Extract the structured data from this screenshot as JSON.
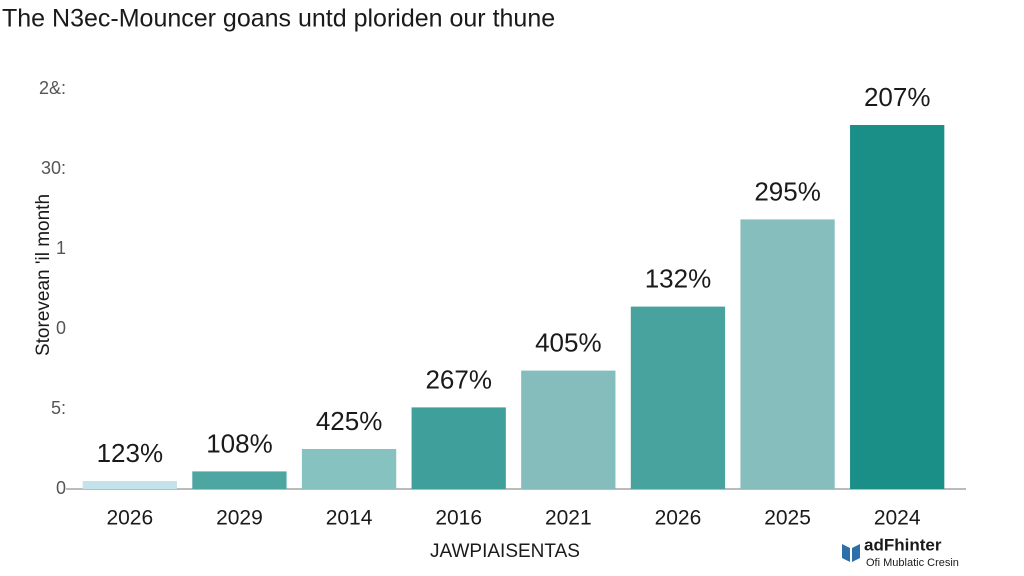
{
  "chart_data": {
    "type": "bar",
    "title": "The N3ec-Mouncer goans untd ploriden our thune",
    "y_label": "Storevean 'il month",
    "x_label": "JAWPIAISENTAS",
    "categories": [
      "2026",
      "2029",
      "2014",
      "2016",
      "2021",
      "2026",
      "2025",
      "2024"
    ],
    "values": [
      0.1,
      0.22,
      0.5,
      1.02,
      1.48,
      2.28,
      3.37,
      4.55
    ],
    "colors": [
      "#c4e2ea",
      "#4ea6a2",
      "#86c2c0",
      "#3f9f9b",
      "#84bdbb",
      "#48a39f",
      "#86bebd",
      "#1a8f88"
    ],
    "annotations": [
      "123%",
      "108%",
      "425%",
      "267%",
      "405%",
      "132%",
      "295%",
      "207%"
    ],
    "ylim": [
      0,
      5
    ],
    "yticks": [
      0,
      {
        "value": 1,
        "label": "5:"
      },
      {
        "value": 2,
        "label": "0"
      },
      {
        "value": 3,
        "label": "1"
      },
      {
        "value": 4,
        "label": "30:"
      },
      {
        "value": 5,
        "label": "2&:"
      }
    ],
    "logo": {
      "name": "adFhinter",
      "tagline": "Ofi Mublatic Cresin"
    }
  }
}
